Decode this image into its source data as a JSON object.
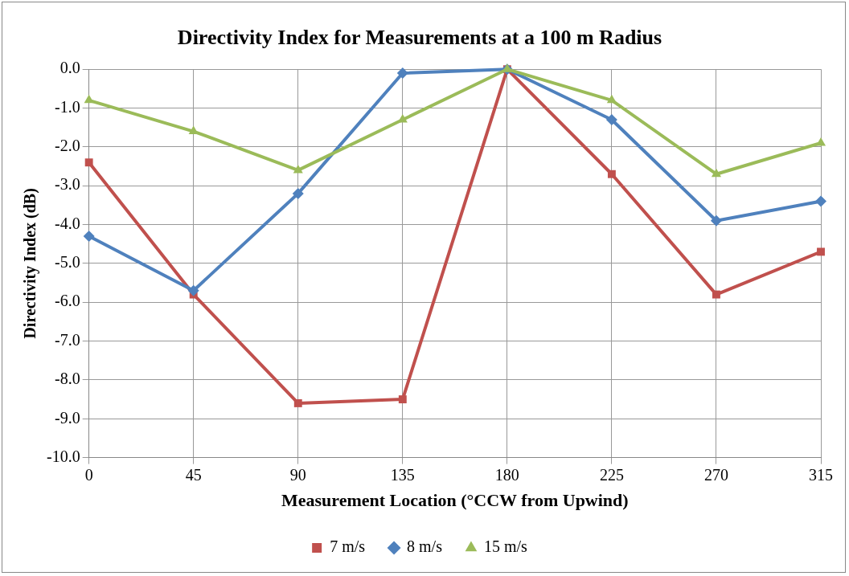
{
  "chart_data": {
    "type": "line",
    "title": "Directivity Index for Measurements at a 100 m Radius",
    "xlabel": "Measurement Location (°CCW from Upwind)",
    "ylabel": "Directivity Index (dB)",
    "x": [
      0,
      45,
      90,
      135,
      180,
      225,
      270,
      315
    ],
    "xlim": [
      0,
      315
    ],
    "xticks": [
      0,
      45,
      90,
      135,
      180,
      225,
      270,
      315
    ],
    "ylim": [
      -10,
      0
    ],
    "yticks": [
      {
        "value": -10,
        "label": "-10.0"
      },
      {
        "value": -9,
        "label": "-9.0"
      },
      {
        "value": -8,
        "label": "-8.0"
      },
      {
        "value": -7,
        "label": "-7.0"
      },
      {
        "value": -6,
        "label": "-6.0"
      },
      {
        "value": -5,
        "label": "-5.0"
      },
      {
        "value": -4,
        "label": "-4.0"
      },
      {
        "value": -3,
        "label": "-3.0"
      },
      {
        "value": -2,
        "label": "-2.0"
      },
      {
        "value": -1,
        "label": "-1.0"
      },
      {
        "value": 0,
        "label": "0.0"
      }
    ],
    "series": [
      {
        "name": "7 m/s",
        "color": "#c0504d",
        "marker": "square",
        "values": [
          -2.4,
          -5.8,
          -8.6,
          -8.5,
          0.0,
          -2.7,
          -5.8,
          -4.7
        ]
      },
      {
        "name": "8 m/s",
        "color": "#4f81bd",
        "marker": "diamond",
        "values": [
          -4.3,
          -5.7,
          -3.2,
          -0.1,
          0.0,
          -1.3,
          -3.9,
          -3.4
        ]
      },
      {
        "name": "15 m/s",
        "color": "#9bbb59",
        "marker": "triangle",
        "values": [
          -0.8,
          -1.6,
          -2.6,
          -1.3,
          0.0,
          -0.8,
          -2.7,
          -1.9
        ]
      }
    ],
    "grid": true,
    "legend": "bottom",
    "line_style": "solid"
  }
}
